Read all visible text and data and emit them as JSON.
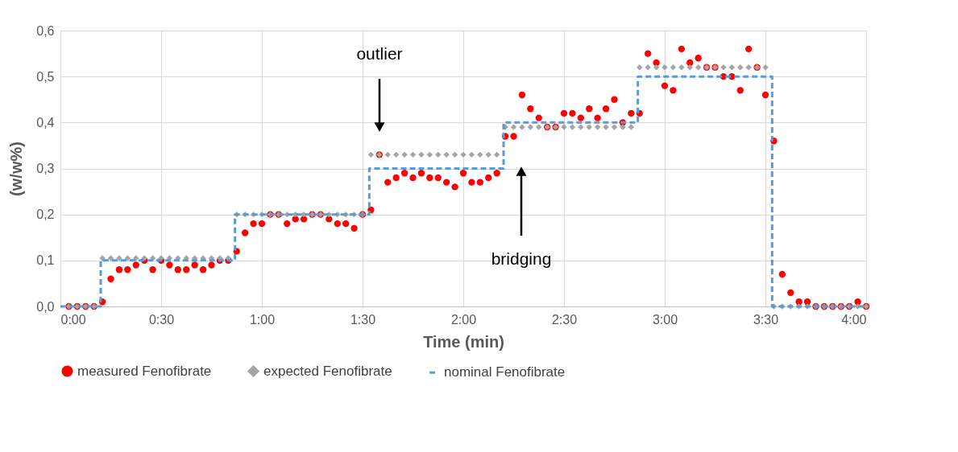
{
  "chart_data": {
    "type": "scatter",
    "xlabel": "Time (min)",
    "ylabel": "(w/w%)",
    "x": [
      2.5,
      5,
      7.5,
      10,
      12.5,
      15,
      17.5,
      20,
      22.5,
      25,
      27.5,
      30,
      32.5,
      35,
      37.5,
      40,
      42.5,
      45,
      47.5,
      50,
      52.5,
      55,
      57.5,
      60,
      62.5,
      65,
      67.5,
      70,
      72.5,
      75,
      77.5,
      80,
      82.5,
      85,
      87.5,
      90,
      92.5,
      95,
      97.5,
      100,
      102.5,
      105,
      107.5,
      110,
      112.5,
      115,
      117.5,
      120,
      122.5,
      125,
      127.5,
      130,
      132.5,
      135,
      137.5,
      140,
      142.5,
      145,
      147.5,
      150,
      152.5,
      155,
      157.5,
      160,
      162.5,
      165,
      167.5,
      170,
      172.5,
      175,
      177.5,
      180,
      182.5,
      185,
      187.5,
      190,
      192.5,
      195,
      197.5,
      200,
      202.5,
      205,
      207.5,
      210,
      212.5,
      215,
      217.5,
      220,
      222.5,
      225,
      227.5,
      230,
      232.5,
      235,
      237.5,
      240
    ],
    "series": [
      {
        "name": "measured Fenofibrate",
        "color": "#ff0000",
        "marker": "circle",
        "values": [
          0,
          0,
          0,
          0,
          0.01,
          0.06,
          0.08,
          0.08,
          0.09,
          0.1,
          0.08,
          0.1,
          0.09,
          0.08,
          0.08,
          0.09,
          0.08,
          0.09,
          0.1,
          0.1,
          0.12,
          0.16,
          0.18,
          0.18,
          0.2,
          0.2,
          0.18,
          0.19,
          0.19,
          0.2,
          0.2,
          0.19,
          0.18,
          0.18,
          0.17,
          0.2,
          0.21,
          0.33,
          0.27,
          0.28,
          0.29,
          0.28,
          0.29,
          0.28,
          0.28,
          0.27,
          0.26,
          0.29,
          0.27,
          0.27,
          0.28,
          0.29,
          0.37,
          0.37,
          0.46,
          0.43,
          0.41,
          0.39,
          0.39,
          0.42,
          0.42,
          0.41,
          0.43,
          0.41,
          0.43,
          0.45,
          0.4,
          0.42,
          0.42,
          0.55,
          0.53,
          0.48,
          0.47,
          0.56,
          0.53,
          0.54,
          0.52,
          0.52,
          0.5,
          0.5,
          0.47,
          0.56,
          0.52,
          0.46,
          0.36,
          0.07,
          0.03,
          0.01,
          0.01,
          0,
          0,
          0,
          0,
          0,
          0.01,
          0
        ]
      },
      {
        "name": "expected Fenofibrate",
        "color": "#a5a5a5",
        "marker": "diamond",
        "values": [
          0,
          0,
          0,
          0,
          0.105,
          0.105,
          0.105,
          0.105,
          0.105,
          0.105,
          0.105,
          0.105,
          0.105,
          0.105,
          0.105,
          0.105,
          0.105,
          0.105,
          0.105,
          0.105,
          0.2,
          0.2,
          0.2,
          0.2,
          0.2,
          0.2,
          0.2,
          0.2,
          0.2,
          0.2,
          0.2,
          0.2,
          0.2,
          0.2,
          0.2,
          0.2,
          0.33,
          0.33,
          0.33,
          0.33,
          0.33,
          0.33,
          0.33,
          0.33,
          0.33,
          0.33,
          0.33,
          0.33,
          0.33,
          0.33,
          0.33,
          0.33,
          0.39,
          0.39,
          0.39,
          0.39,
          0.39,
          0.39,
          0.39,
          0.39,
          0.39,
          0.39,
          0.39,
          0.39,
          0.39,
          0.39,
          0.39,
          0.39,
          0.52,
          0.52,
          0.52,
          0.52,
          0.52,
          0.52,
          0.52,
          0.52,
          0.52,
          0.52,
          0.52,
          0.52,
          0.52,
          0.52,
          0.52,
          0.52,
          0,
          0,
          0,
          0,
          0,
          0,
          0,
          0,
          0,
          0,
          0,
          0
        ]
      },
      {
        "name": "nominal Fenofibrate",
        "color": "#5b9bd5",
        "type": "step",
        "line_style": "dashed",
        "x": [
          0,
          12,
          52,
          92,
          132,
          172,
          212,
          240
        ],
        "values": [
          0,
          0.1,
          0.2,
          0.3,
          0.4,
          0.5,
          0,
          0
        ]
      }
    ],
    "xlim": [
      0,
      240
    ],
    "xticks": [
      {
        "value": 0,
        "label": "0:00"
      },
      {
        "value": 30,
        "label": "0:30"
      },
      {
        "value": 60,
        "label": "1:00"
      },
      {
        "value": 90,
        "label": "1:30"
      },
      {
        "value": 120,
        "label": "2:00"
      },
      {
        "value": 150,
        "label": "2:30"
      },
      {
        "value": 180,
        "label": "3:00"
      },
      {
        "value": 210,
        "label": "3:30"
      },
      {
        "value": 240,
        "label": "4:00"
      }
    ],
    "ylim": [
      0,
      0.6
    ],
    "yticks": [
      {
        "value": 0,
        "label": "0,0"
      },
      {
        "value": 0.1,
        "label": "0,1"
      },
      {
        "value": 0.2,
        "label": "0,2"
      },
      {
        "value": 0.3,
        "label": "0,3"
      },
      {
        "value": 0.4,
        "label": "0,4"
      },
      {
        "value": 0.5,
        "label": "0,5"
      },
      {
        "value": 0.6,
        "label": "0,6"
      }
    ],
    "grid": true,
    "legend": "bottom",
    "annotations": [
      "outlier",
      "bridging"
    ]
  }
}
